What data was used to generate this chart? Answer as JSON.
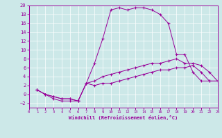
{
  "xlabel": "Windchill (Refroidissement éolien,°C)",
  "background_color": "#cce8e8",
  "line_color": "#990099",
  "xlim": [
    0,
    23
  ],
  "ylim": [
    -3,
    20
  ],
  "xticks": [
    0,
    1,
    2,
    3,
    4,
    5,
    6,
    7,
    8,
    9,
    10,
    11,
    12,
    13,
    14,
    15,
    16,
    17,
    18,
    19,
    20,
    21,
    22,
    23
  ],
  "yticks": [
    -2,
    0,
    2,
    4,
    6,
    8,
    10,
    12,
    14,
    16,
    18,
    20
  ],
  "line1_x": [
    1,
    2,
    3,
    4,
    5,
    6,
    7,
    8,
    9,
    10,
    11,
    12,
    13,
    14,
    15,
    16,
    17,
    18,
    19,
    20,
    21,
    22,
    23
  ],
  "line1_y": [
    1,
    0,
    -1,
    -1.5,
    -1.5,
    -1.5,
    2.5,
    7,
    12.5,
    19,
    19.5,
    19,
    19.5,
    19.5,
    19,
    18,
    16,
    9,
    9,
    5,
    3,
    3,
    3
  ],
  "line2_x": [
    1,
    2,
    3,
    4,
    5,
    6,
    7,
    8,
    9,
    10,
    11,
    12,
    13,
    14,
    15,
    16,
    17,
    18,
    19,
    20,
    21,
    22,
    23
  ],
  "line2_y": [
    1,
    0,
    -0.5,
    -1,
    -1,
    -1.5,
    2.5,
    3,
    4,
    4.5,
    5,
    5.5,
    6,
    6.5,
    7,
    7,
    7.5,
    8,
    7,
    7,
    6.5,
    5,
    3
  ],
  "line3_x": [
    1,
    2,
    3,
    4,
    5,
    6,
    7,
    8,
    9,
    10,
    11,
    12,
    13,
    14,
    15,
    16,
    17,
    18,
    19,
    20,
    21,
    22,
    23
  ],
  "line3_y": [
    1,
    0,
    -0.5,
    -1,
    -1,
    -1.5,
    2.5,
    2,
    2.5,
    2.5,
    3,
    3.5,
    4,
    4.5,
    5,
    5.5,
    5.5,
    6,
    6,
    6.5,
    5,
    3,
    3
  ]
}
